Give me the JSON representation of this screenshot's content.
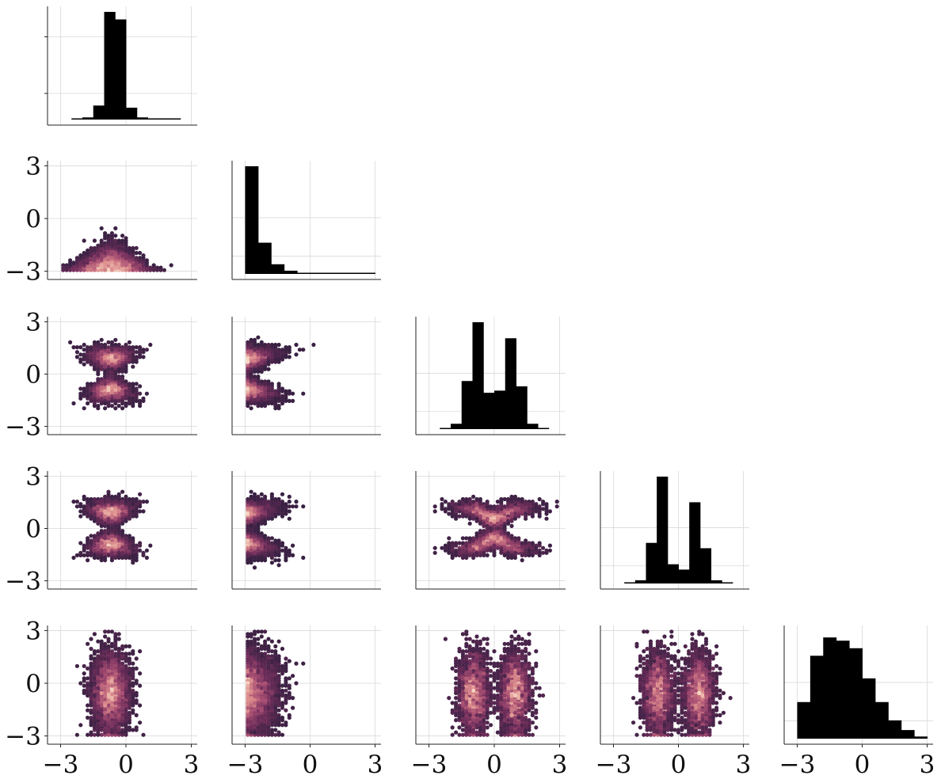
{
  "chart_data": {
    "type": "pairplot",
    "layout": "lower-triangle",
    "variables": 5,
    "axis_range": [
      -3.2,
      3.2
    ],
    "tick_values": [
      -3,
      0,
      3
    ],
    "tick_labels": [
      "−3",
      "0",
      "3"
    ],
    "grid": true,
    "colors": {
      "histogram": "#000000",
      "hex_low": "#2d1e3e",
      "hex_mid": "#a04f77",
      "hex_high": "#f6d5c2"
    },
    "diagonal_histograms": [
      {
        "variable": 1,
        "bins": [
          [
            -2.5,
            -2.0,
            0.01
          ],
          [
            -2.0,
            -1.5,
            0.02
          ],
          [
            -1.5,
            -1.0,
            0.13
          ],
          [
            -1.0,
            -0.5,
            1.0
          ],
          [
            -0.5,
            0.0,
            0.93
          ],
          [
            0.0,
            0.5,
            0.11
          ],
          [
            0.5,
            1.0,
            0.02
          ],
          [
            1.0,
            1.5,
            0.01
          ],
          [
            1.5,
            2.0,
            0.005
          ],
          [
            2.0,
            2.5,
            0.003
          ]
        ]
      },
      {
        "variable": 2,
        "bins": [
          [
            -3.0,
            -2.4,
            1.0
          ],
          [
            -2.4,
            -1.8,
            0.29
          ],
          [
            -1.8,
            -1.2,
            0.09
          ],
          [
            -1.2,
            -0.6,
            0.03
          ],
          [
            -0.6,
            0.0,
            0.01
          ],
          [
            0.0,
            0.6,
            0.01
          ],
          [
            0.6,
            1.2,
            0.005
          ],
          [
            1.2,
            1.8,
            0.003
          ],
          [
            1.8,
            2.4,
            0.002
          ],
          [
            2.4,
            3.0,
            0.001
          ]
        ]
      },
      {
        "variable": 3,
        "bins": [
          [
            -2.5,
            -2.0,
            0.01
          ],
          [
            -2.0,
            -1.5,
            0.05
          ],
          [
            -1.5,
            -1.0,
            0.45
          ],
          [
            -1.0,
            -0.5,
            1.0
          ],
          [
            -0.5,
            0.0,
            0.34
          ],
          [
            0.0,
            0.5,
            0.36
          ],
          [
            0.5,
            1.0,
            0.85
          ],
          [
            1.0,
            1.5,
            0.4
          ],
          [
            1.5,
            2.0,
            0.05
          ],
          [
            2.0,
            2.5,
            0.01
          ]
        ]
      },
      {
        "variable": 4,
        "bins": [
          [
            -2.5,
            -2.0,
            0.01
          ],
          [
            -2.0,
            -1.5,
            0.03
          ],
          [
            -1.5,
            -1.0,
            0.38
          ],
          [
            -1.0,
            -0.5,
            1.0
          ],
          [
            -0.5,
            0.0,
            0.18
          ],
          [
            0.0,
            0.5,
            0.13
          ],
          [
            0.5,
            1.0,
            0.76
          ],
          [
            1.0,
            1.5,
            0.33
          ],
          [
            1.5,
            2.0,
            0.03
          ],
          [
            2.0,
            2.5,
            0.01
          ]
        ]
      },
      {
        "variable": 5,
        "bins": [
          [
            -3.0,
            -2.4,
            0.34
          ],
          [
            -2.4,
            -1.8,
            0.77
          ],
          [
            -1.8,
            -1.2,
            0.94
          ],
          [
            -1.2,
            -0.6,
            0.91
          ],
          [
            -0.6,
            0.0,
            0.84
          ],
          [
            0.0,
            0.6,
            0.56
          ],
          [
            0.6,
            1.2,
            0.34
          ],
          [
            1.2,
            1.8,
            0.17
          ],
          [
            1.8,
            2.4,
            0.08
          ],
          [
            2.4,
            3.0,
            0.02
          ]
        ]
      }
    ],
    "hexbin_panels": [
      {
        "x_variable": 1,
        "y_variable": 2,
        "pattern": "mound"
      },
      {
        "x_variable": 1,
        "y_variable": 3,
        "pattern": "hourglass"
      },
      {
        "x_variable": 2,
        "y_variable": 3,
        "pattern": "edge-hourglass"
      },
      {
        "x_variable": 1,
        "y_variable": 4,
        "pattern": "hourglass"
      },
      {
        "x_variable": 2,
        "y_variable": 4,
        "pattern": "edge-hourglass"
      },
      {
        "x_variable": 3,
        "y_variable": 4,
        "pattern": "cross"
      },
      {
        "x_variable": 1,
        "y_variable": 5,
        "pattern": "vertical-band"
      },
      {
        "x_variable": 2,
        "y_variable": 5,
        "pattern": "edge-band"
      },
      {
        "x_variable": 3,
        "y_variable": 5,
        "pattern": "double-band"
      },
      {
        "x_variable": 4,
        "y_variable": 5,
        "pattern": "double-band"
      }
    ]
  }
}
